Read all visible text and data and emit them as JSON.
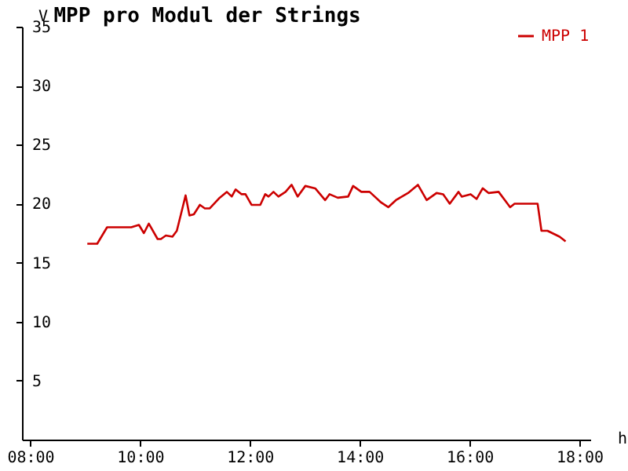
{
  "chart_data": {
    "type": "line",
    "title": "MPP pro Modul der Strings",
    "xlabel": "h",
    "ylabel": "V",
    "x": [
      9.04,
      9.22,
      9.4,
      9.84,
      9.98,
      10.07,
      10.16,
      10.32,
      10.38,
      10.47,
      10.59,
      10.67,
      10.83,
      10.9,
      10.98,
      11.09,
      11.18,
      11.27,
      11.45,
      11.58,
      11.67,
      11.74,
      11.85,
      11.92,
      12.03,
      12.19,
      12.28,
      12.34,
      12.43,
      12.52,
      12.65,
      12.76,
      12.87,
      13.01,
      13.19,
      13.37,
      13.45,
      13.6,
      13.79,
      13.88,
      14.03,
      14.18,
      14.39,
      14.52,
      14.66,
      14.88,
      15.06,
      15.22,
      15.4,
      15.52,
      15.64,
      15.8,
      15.86,
      16.02,
      16.13,
      16.24,
      16.35,
      16.53,
      16.74,
      16.82,
      17.24,
      17.31,
      17.42,
      17.64,
      17.75
    ],
    "series": [
      {
        "name": "MPP 1",
        "color": "#cc0000",
        "values": [
          16.6,
          16.6,
          18.0,
          18.0,
          18.2,
          17.5,
          18.3,
          17.0,
          17.0,
          17.3,
          17.2,
          17.7,
          20.7,
          19.0,
          19.1,
          19.9,
          19.6,
          19.6,
          20.5,
          21.0,
          20.6,
          21.2,
          20.8,
          20.8,
          19.9,
          19.9,
          20.8,
          20.6,
          21.0,
          20.6,
          21.0,
          21.6,
          20.6,
          21.5,
          21.3,
          20.3,
          20.8,
          20.5,
          20.6,
          21.5,
          21.0,
          21.0,
          20.1,
          19.7,
          20.3,
          20.9,
          21.6,
          20.3,
          20.9,
          20.8,
          20.0,
          21.0,
          20.6,
          20.8,
          20.4,
          21.3,
          20.9,
          21.0,
          19.7,
          20.0,
          20.0,
          17.7,
          17.7,
          17.2,
          16.8
        ]
      }
    ],
    "xlim": [
      7.85,
      18.2
    ],
    "xticks": [
      {
        "value": 8,
        "label": "08:00"
      },
      {
        "value": 10,
        "label": "10:00"
      },
      {
        "value": 12,
        "label": "12:00"
      },
      {
        "value": 14,
        "label": "14:00"
      },
      {
        "value": 16,
        "label": "16:00"
      },
      {
        "value": 18,
        "label": "18:00"
      }
    ],
    "ylim": [
      0,
      35
    ],
    "yticks": [
      5,
      10,
      15,
      20,
      25,
      30,
      35
    ],
    "grid": false,
    "legend": "top right",
    "marker": "none",
    "line_style": "solid"
  }
}
